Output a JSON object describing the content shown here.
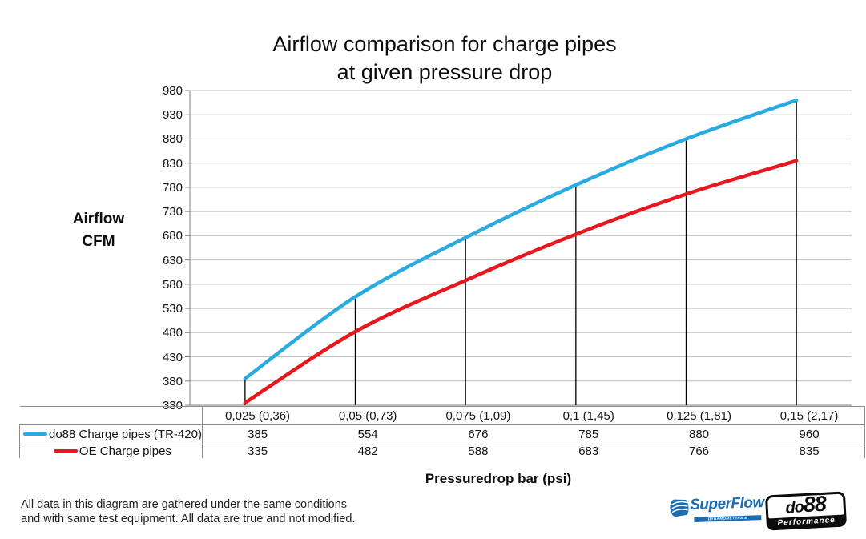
{
  "title": {
    "line1": "Airflow comparison for charge pipes",
    "line2": "at given pressure drop"
  },
  "y_axis": {
    "title_line1": "Airflow",
    "title_line2": "CFM",
    "ticks": [
      980,
      930,
      880,
      830,
      780,
      730,
      680,
      630,
      580,
      530,
      480,
      430,
      380,
      330
    ]
  },
  "x_axis": {
    "title": "Pressuredrop bar (psi)"
  },
  "chart_data": {
    "type": "line",
    "categories": [
      "0,025 (0,36)",
      "0,05 (0,73)",
      "0,075 (1,09)",
      "0,1 (1,45)",
      "0,125 (1,81)",
      "0,15 (2,17)"
    ],
    "series": [
      {
        "name": "do88 Charge pipes (TR-420)",
        "color": "#29ABE2",
        "values": [
          385,
          554,
          676,
          785,
          880,
          960
        ]
      },
      {
        "name": "OE Charge pipes",
        "color": "#E8161D",
        "values": [
          335,
          482,
          588,
          683,
          766,
          835
        ]
      }
    ],
    "title": "Airflow comparison for charge pipes at given pressure drop",
    "xlabel": "Pressuredrop bar (psi)",
    "ylabel": "Airflow CFM",
    "ylim": [
      330,
      980
    ],
    "ytick_step": 50,
    "grid": "horizontal",
    "drop_lines": true,
    "legend_position": "table-left"
  },
  "footer": {
    "line1": "All data in this diagram are gathered under the same conditions",
    "line2": "and with same test equipment. All data are true and not modified."
  },
  "logos": {
    "superflow": {
      "name": "SuperFlow",
      "tagline": "DYNAMOMETERS & FLOWBENCHES",
      "color": "#1B6CB0"
    },
    "do88": {
      "name_prefix": "do",
      "name_suffix": "88",
      "tagline": "Performance"
    }
  },
  "colors": {
    "grid": "#BFBFBF",
    "axis": "#7F7F7F",
    "table_border": "#8C8C8C",
    "drop_line": "#000000"
  }
}
